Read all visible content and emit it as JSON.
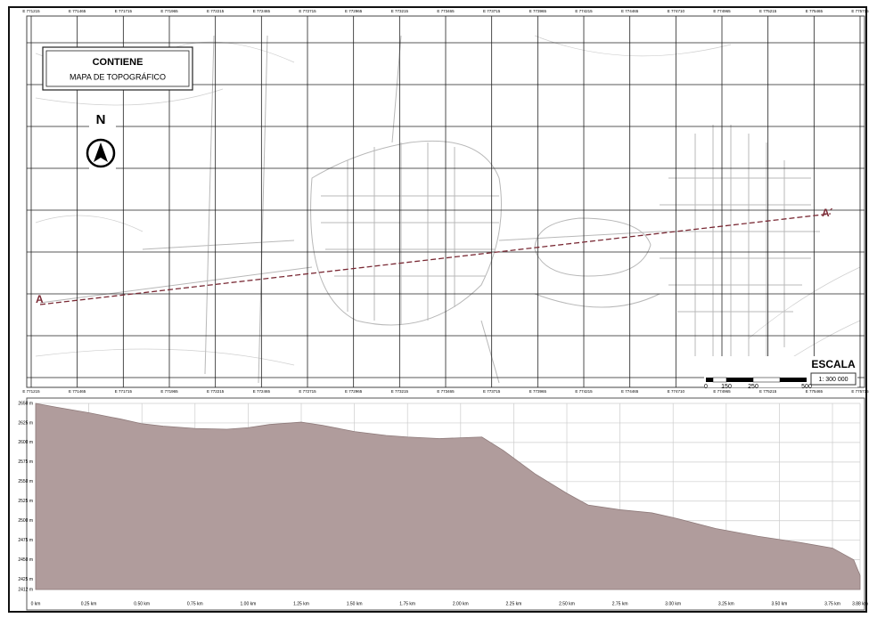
{
  "legend_box": {
    "title": "CONTIENE",
    "subtitle": "MAPA DE TOPOGRÁFICO"
  },
  "north": "N",
  "section": {
    "start": "A",
    "end": "A´"
  },
  "scale": {
    "title": "ESCALA",
    "ratio": "1: 300 000",
    "bar_labels": [
      "0",
      "150",
      "250",
      "500"
    ]
  },
  "map_coords": {
    "easting": [
      "E 771215",
      "E 771465",
      "E 771715",
      "E 771965",
      "E 772215",
      "E 772465",
      "E 772715",
      "E 772965",
      "E 773215",
      "E 773465",
      "E 773715",
      "E 773965",
      "E 774215",
      "E 774465",
      "E 774710",
      "E 774965",
      "E 775215",
      "E 775465",
      "E 775715"
    ]
  },
  "chart_data": {
    "type": "area",
    "color": "#b09c9c",
    "grid": true,
    "x": [
      0,
      0.1,
      0.25,
      0.4,
      0.5,
      0.6,
      0.75,
      0.9,
      1.0,
      1.1,
      1.25,
      1.35,
      1.5,
      1.65,
      1.75,
      1.9,
      2.0,
      2.1,
      2.2,
      2.35,
      2.5,
      2.6,
      2.75,
      2.9,
      3.0,
      3.2,
      3.4,
      3.6,
      3.75,
      3.85,
      3.88
    ],
    "values": [
      2650,
      2645,
      2638,
      2630,
      2624,
      2621,
      2618,
      2617,
      2619,
      2623,
      2626,
      2622,
      2614,
      2609,
      2607,
      2605,
      2606,
      2607,
      2590,
      2560,
      2535,
      2520,
      2514,
      2510,
      2504,
      2490,
      2480,
      2472,
      2465,
      2450,
      2430
    ],
    "xlim": [
      0,
      3.88
    ],
    "ylim": [
      2412,
      2650
    ],
    "xticks": [
      {
        "value": 0,
        "label": "0 km"
      },
      {
        "value": 0.25,
        "label": "0.25 km"
      },
      {
        "value": 0.5,
        "label": "0.50 km"
      },
      {
        "value": 0.75,
        "label": "0.75 km"
      },
      {
        "value": 1.0,
        "label": "1.00 km"
      },
      {
        "value": 1.25,
        "label": "1.25 km"
      },
      {
        "value": 1.5,
        "label": "1.50 km"
      },
      {
        "value": 1.75,
        "label": "1.75 km"
      },
      {
        "value": 2.0,
        "label": "2.00 km"
      },
      {
        "value": 2.25,
        "label": "2.25 km"
      },
      {
        "value": 2.5,
        "label": "2.50 km"
      },
      {
        "value": 2.75,
        "label": "2.75 km"
      },
      {
        "value": 3.0,
        "label": "3.00 km"
      },
      {
        "value": 3.25,
        "label": "3.25 km"
      },
      {
        "value": 3.5,
        "label": "3.50 km"
      },
      {
        "value": 3.75,
        "label": "3.75 km"
      },
      {
        "value": 3.88,
        "label": "3.88 km"
      }
    ],
    "yticks": [
      {
        "value": 2650,
        "label": "2650 m"
      },
      {
        "value": 2625,
        "label": "2625 m"
      },
      {
        "value": 2600,
        "label": "2600 m"
      },
      {
        "value": 2575,
        "label": "2575 m"
      },
      {
        "value": 2550,
        "label": "2550 m"
      },
      {
        "value": 2525,
        "label": "2525 m"
      },
      {
        "value": 2500,
        "label": "2500 m"
      },
      {
        "value": 2475,
        "label": "2475 m"
      },
      {
        "value": 2450,
        "label": "2450 m"
      },
      {
        "value": 2425,
        "label": "2425 m"
      },
      {
        "value": 2412,
        "label": "2412 m"
      }
    ]
  }
}
